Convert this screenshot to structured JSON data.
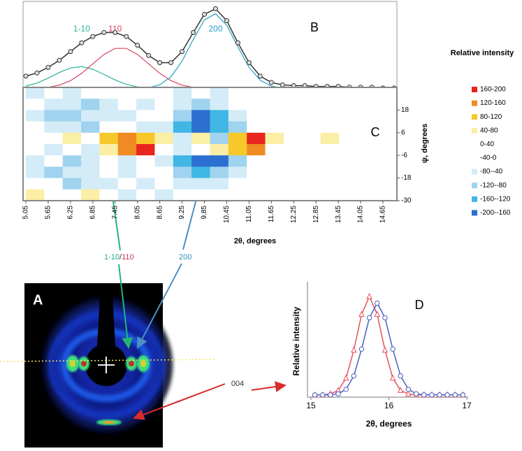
{
  "chart_data": [
    {
      "type": "line",
      "label": "B",
      "x": [
        5.05,
        5.35,
        5.65,
        5.95,
        6.25,
        6.55,
        6.85,
        7.15,
        7.45,
        7.75,
        8.05,
        8.35,
        8.65,
        8.95,
        9.25,
        9.55,
        9.85,
        10.15,
        10.45,
        10.75,
        11.05,
        11.35,
        11.65,
        11.95,
        12.25,
        12.55,
        12.85,
        13.15,
        13.45,
        13.75,
        14.05,
        14.35,
        14.65,
        14.95
      ],
      "xlim": [
        5.05,
        14.95
      ],
      "ylim": [
        0,
        105
      ],
      "series": [
        {
          "name": "1-10",
          "color": "#2bb39a",
          "values": [
            3.3,
            7.3,
            13.4,
            20.6,
            26.3,
            28,
            24.7,
            18.2,
            11.1,
            5.7,
            2.4,
            0.9,
            0.3,
            0.1,
            0,
            0,
            0,
            0,
            0,
            0,
            0,
            0,
            0,
            0,
            0,
            0,
            0,
            0,
            0,
            0,
            0,
            0,
            0,
            0
          ]
        },
        {
          "name": "110",
          "color": "#d9435f",
          "values": [
            0.2,
            0.6,
            1.8,
            4.6,
            10.3,
            19.5,
            31.5,
            43.4,
            51,
            51,
            43.4,
            31.5,
            19.5,
            10.3,
            4.6,
            1.8,
            0.6,
            0.2,
            0,
            0,
            0,
            0,
            0,
            0,
            0,
            0,
            0,
            0,
            0,
            0,
            0,
            0,
            0,
            0
          ]
        },
        {
          "name": "200",
          "color": "#2a9fc4",
          "values": [
            0,
            0,
            0,
            0,
            0,
            0,
            0,
            0,
            0,
            0,
            0.3,
            1.3,
            5.1,
            15.1,
            34.9,
            62.4,
            87.1,
            94.7,
            80.2,
            52.8,
            27.2,
            10.8,
            3.4,
            0.8,
            0.2,
            0,
            0,
            0,
            0,
            0,
            0,
            0,
            0,
            0
          ]
        },
        {
          "color": "#333333",
          "marker": "circle",
          "values": [
            16,
            20,
            27,
            36,
            47,
            58,
            66,
            71,
            71,
            66,
            55,
            42,
            33,
            33,
            47,
            71,
            94,
            101,
            86,
            58,
            33,
            16,
            8,
            5,
            4,
            4,
            3,
            3,
            3,
            2,
            2,
            2,
            1,
            1
          ]
        }
      ]
    },
    {
      "type": "heatmap",
      "label": "C",
      "xlabel": "2θ, degrees",
      "ylabel": "ψ, degrees",
      "xlim": [
        5.05,
        14.95
      ],
      "ylim": [
        -30,
        30
      ],
      "xticks": [
        5.05,
        5.65,
        6.25,
        6.85,
        7.45,
        8.05,
        8.65,
        9.25,
        9.85,
        10.45,
        11.05,
        11.65,
        12.25,
        12.85,
        13.45,
        14.05,
        14.65
      ],
      "yticks": [
        18,
        6,
        -6,
        -18,
        -30
      ],
      "z": [
        [
          -50,
          -20,
          -60,
          -30,
          10,
          -20,
          -40,
          -10,
          -60,
          -30,
          -50,
          -20,
          10,
          -10,
          -30,
          0,
          -20,
          -10,
          20,
          -10
        ],
        [
          -40,
          -70,
          -50,
          -90,
          -60,
          -30,
          -50,
          -20,
          -50,
          -90,
          -60,
          -40,
          -20,
          10,
          -10,
          -30,
          0,
          -10,
          -20,
          0
        ],
        [
          -60,
          -90,
          -100,
          -70,
          -50,
          -60,
          -40,
          -30,
          -110,
          -170,
          -150,
          -70,
          -30,
          -10,
          20,
          -10,
          -20,
          10,
          0,
          -10
        ],
        [
          -30,
          -60,
          -50,
          -90,
          -40,
          -20,
          -50,
          -60,
          -130,
          -180,
          -160,
          -90,
          -40,
          -20,
          -10,
          0,
          -20,
          -10,
          10,
          0
        ],
        [
          20,
          -40,
          50,
          -30,
          90,
          130,
          100,
          40,
          -60,
          60,
          -90,
          110,
          190,
          60,
          20,
          -10,
          50,
          0,
          -10,
          10
        ],
        [
          -20,
          -70,
          -30,
          -60,
          70,
          150,
          170,
          30,
          -70,
          -40,
          40,
          90,
          150,
          -40,
          -20,
          10,
          0,
          -10,
          0,
          -20
        ],
        [
          -50,
          -40,
          -90,
          -60,
          -40,
          -70,
          -30,
          -50,
          -140,
          -190,
          -170,
          -100,
          -30,
          -20,
          -10,
          0,
          -10,
          0,
          -20,
          10
        ],
        [
          -60,
          -100,
          -50,
          -80,
          -40,
          -60,
          -20,
          -40,
          -90,
          -130,
          -110,
          -60,
          -20,
          10,
          -10,
          -20,
          0,
          10,
          0,
          -10
        ],
        [
          30,
          -40,
          -90,
          -50,
          -60,
          -30,
          -70,
          -40,
          -60,
          -80,
          -50,
          -30,
          -10,
          0,
          -20,
          0,
          10,
          -10,
          0,
          0
        ],
        [
          50,
          -20,
          -40,
          60,
          -30,
          -50,
          -20,
          -60,
          -30,
          -40,
          -20,
          -10,
          0,
          -10,
          0,
          10,
          -10,
          0,
          -20,
          0
        ]
      ],
      "legend": {
        "title": "Relative intensity",
        "items": [
          {
            "label": "160-200",
            "min": 160,
            "max": 200,
            "color": "#e8261f"
          },
          {
            "label": "120-160",
            "min": 120,
            "max": 160,
            "color": "#f08a22"
          },
          {
            "label": "80-120",
            "min": 80,
            "max": 120,
            "color": "#f6c82a"
          },
          {
            "label": "40-80",
            "min": 40,
            "max": 80,
            "color": "#fbeea5"
          },
          {
            "label": "0-40",
            "min": 0,
            "max": 40,
            "color": "#ffffff"
          },
          {
            "label": "-40-0",
            "min": -40,
            "max": 0,
            "color": "#ffffff"
          },
          {
            "label": "-80--40",
            "min": -80,
            "max": -40,
            "color": "#d4ecf7"
          },
          {
            "label": "-120--80",
            "min": -120,
            "max": -80,
            "color": "#9fd3ef"
          },
          {
            "label": "-160--120",
            "min": -160,
            "max": -120,
            "color": "#3fb6e3"
          },
          {
            "label": "-200--160",
            "min": -200,
            "max": -160,
            "color": "#2b6fd1"
          }
        ]
      }
    },
    {
      "type": "line",
      "label": "D",
      "xlabel": "2θ, degrees",
      "ylabel": "Relative intensity",
      "x": [
        15.05,
        15.15,
        15.25,
        15.35,
        15.45,
        15.55,
        15.65,
        15.75,
        15.85,
        15.95,
        16.05,
        16.15,
        16.25,
        16.35,
        16.45,
        16.55,
        16.65,
        16.75,
        16.85,
        16.95
      ],
      "xlim": [
        15,
        17
      ],
      "xticks": [
        15,
        16,
        17
      ],
      "ylim": [
        0,
        100
      ],
      "series": [
        {
          "color": "#e8505b",
          "marker": "triangle",
          "values": [
            2,
            2,
            3,
            6,
            17,
            42,
            74,
            90,
            74,
            42,
            17,
            6,
            3,
            2,
            2,
            2,
            2,
            2,
            2,
            2
          ]
        },
        {
          "color": "#4a5fc1",
          "marker": "circle",
          "values": [
            2,
            2,
            2,
            3,
            7,
            19,
            43,
            71,
            84,
            71,
            43,
            19,
            7,
            3,
            2,
            2,
            2,
            2,
            2,
            2
          ]
        }
      ]
    }
  ],
  "panel_a": {
    "label": "A"
  },
  "annotations": {
    "label_1_10": "1-10",
    "slash": "/",
    "label_110": "110",
    "label_200": "200",
    "label_004": "004"
  }
}
